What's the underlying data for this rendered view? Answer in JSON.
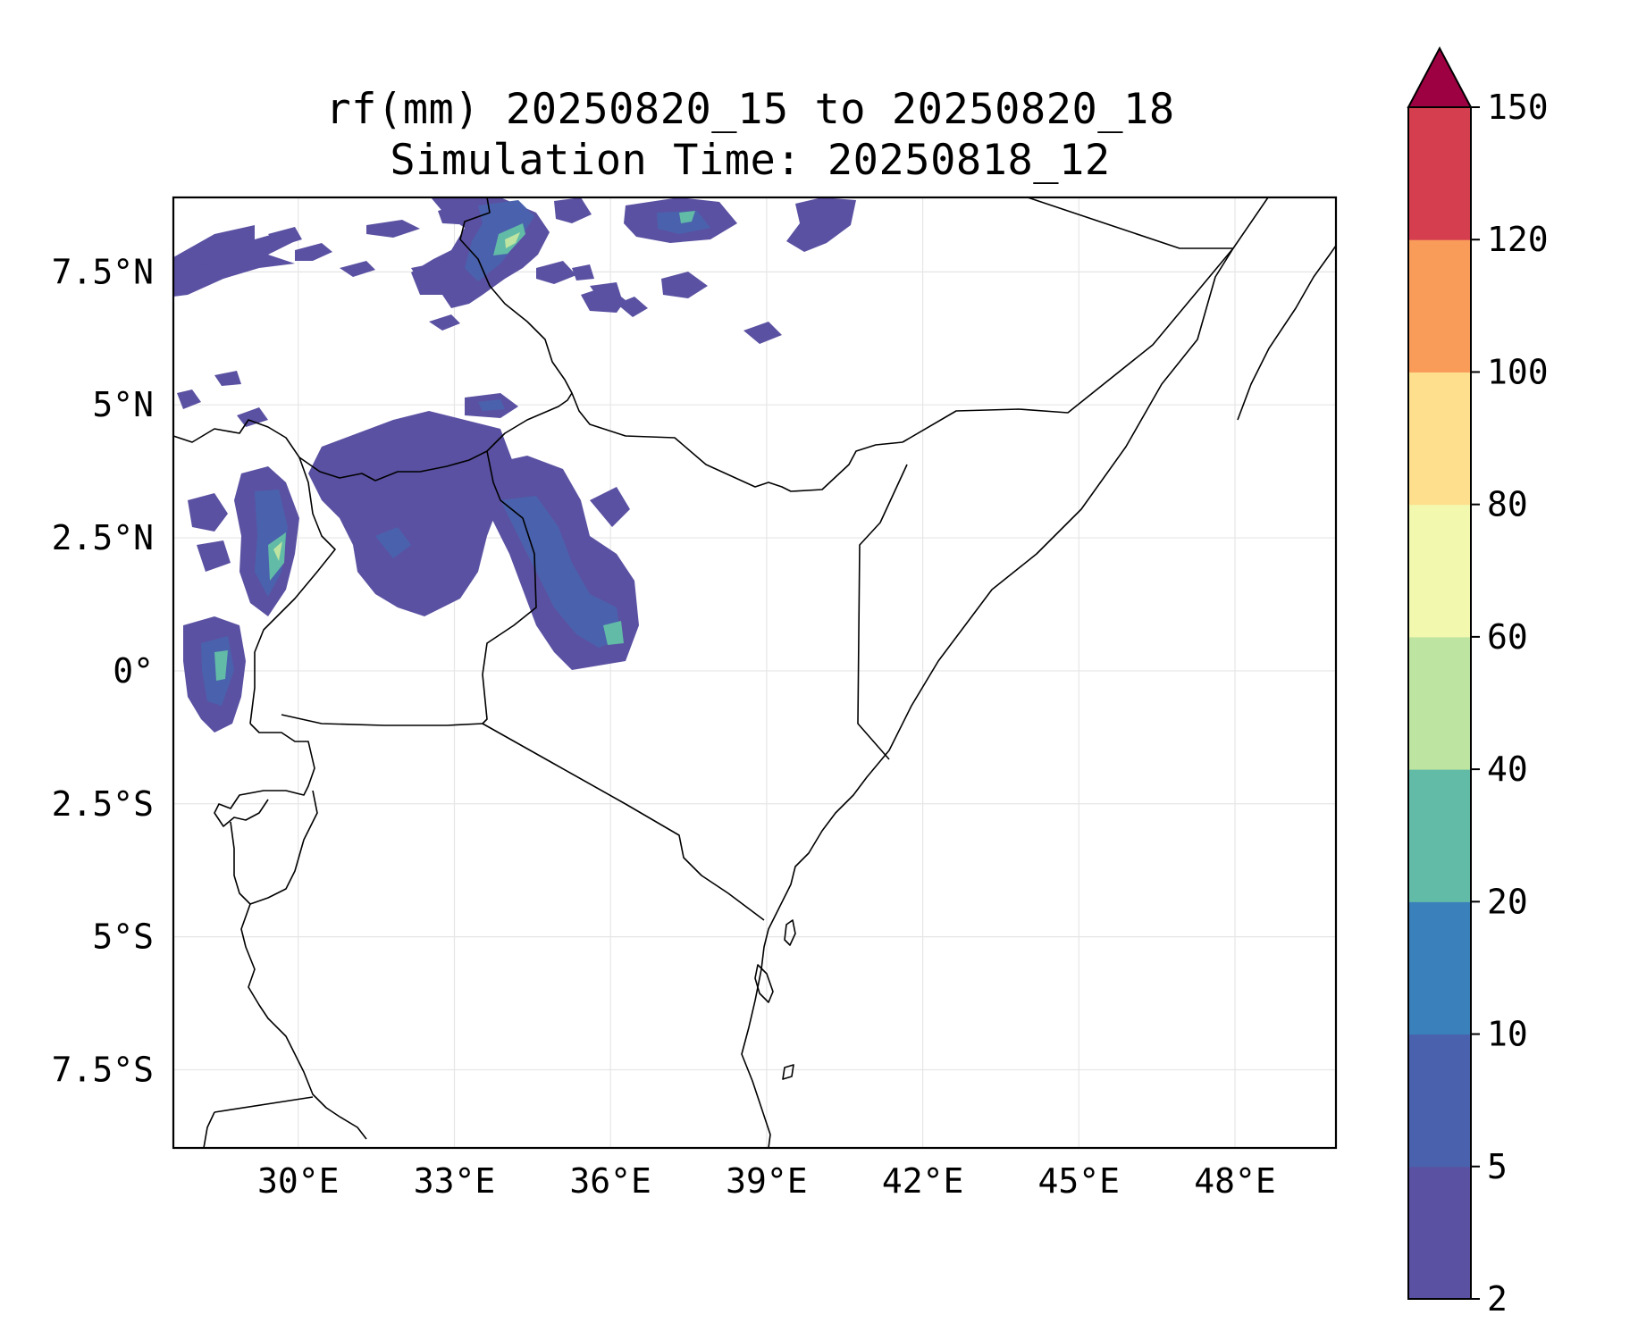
{
  "title": {
    "line1": "rf(mm) 20250820_15 to 20250820_18",
    "line2": "Simulation Time: 20250818_12"
  },
  "map": {
    "lon_range": [
      27.6,
      49.94
    ],
    "lat_range": [
      -8.97,
      8.9
    ],
    "lon_ticks": [
      {
        "value": 30,
        "label": "30°E"
      },
      {
        "value": 33,
        "label": "33°E"
      },
      {
        "value": 36,
        "label": "36°E"
      },
      {
        "value": 39,
        "label": "39°E"
      },
      {
        "value": 42,
        "label": "42°E"
      },
      {
        "value": 45,
        "label": "45°E"
      },
      {
        "value": 48,
        "label": "48°E"
      }
    ],
    "lat_ticks": [
      {
        "value": 7.5,
        "label": "7.5°N"
      },
      {
        "value": 5,
        "label": "5°N"
      },
      {
        "value": 2.5,
        "label": "2.5°N"
      },
      {
        "value": 0,
        "label": "0°"
      },
      {
        "value": -2.5,
        "label": "2.5°S"
      },
      {
        "value": -5,
        "label": "5°S"
      },
      {
        "value": -7.5,
        "label": "7.5°S"
      }
    ],
    "gridlines": true,
    "frame_color": "#000000",
    "boundary_color": "#000000",
    "grid_color": "#e6e6e6"
  },
  "colorbar": {
    "levels": [
      "2",
      "5",
      "10",
      "20",
      "40",
      "60",
      "80",
      "100",
      "120",
      "150"
    ],
    "colors": [
      "#5a51a2",
      "#4a62ad",
      "#3a80ba",
      "#62bba7",
      "#bde4a0",
      "#f2f9af",
      "#fddf8e",
      "#f99c5a",
      "#d53e4f"
    ],
    "extend_color": "#9e0142",
    "extend": "max"
  }
}
